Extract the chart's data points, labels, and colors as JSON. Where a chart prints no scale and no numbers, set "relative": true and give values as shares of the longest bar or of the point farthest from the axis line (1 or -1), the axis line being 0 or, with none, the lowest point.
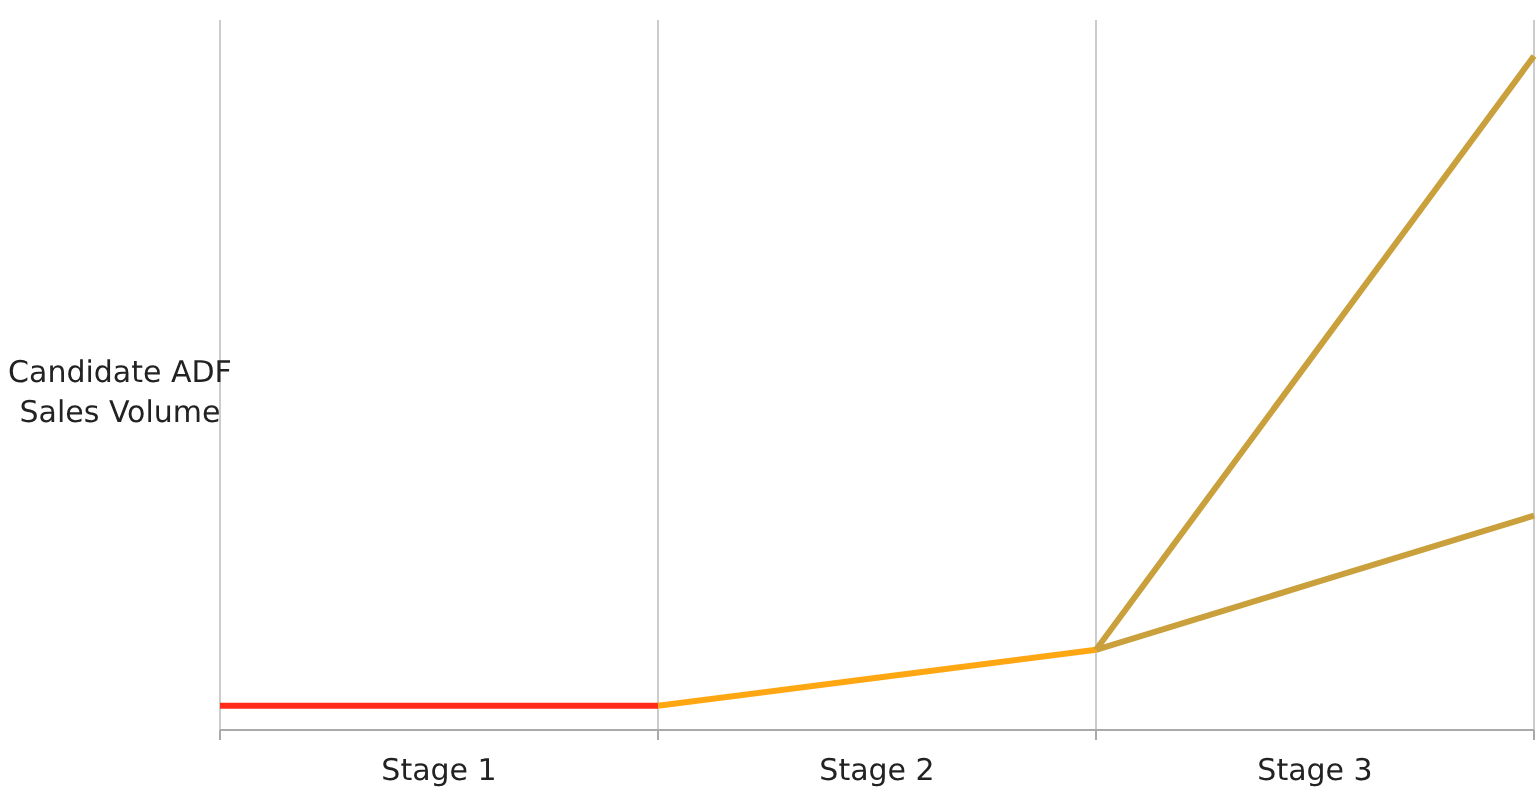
{
  "chart_data": {
    "type": "line",
    "relative": true,
    "ylabel": "Candidate ADF Sales Volume",
    "categories": [
      null,
      "Stage 1",
      null,
      "Stage 2",
      null,
      "Stage 3",
      null
    ],
    "grid": "x",
    "marker": "none",
    "line_style": "solid",
    "series": [
      {
        "color": "#ff2a1a",
        "values": [
          0.036,
          0.036,
          0.036,
          null,
          null,
          null,
          null
        ]
      },
      {
        "color": "#ffa712",
        "values": [
          null,
          null,
          0.036,
          0.0775,
          0.119,
          null,
          null
        ]
      },
      {
        "color": "#c9a03c",
        "values": [
          null,
          null,
          null,
          null,
          0.119,
          0.5595,
          1
        ]
      },
      {
        "color": "#c9a03c",
        "values": [
          null,
          null,
          null,
          null,
          0.119,
          0.2185,
          0.318
        ]
      }
    ]
  }
}
